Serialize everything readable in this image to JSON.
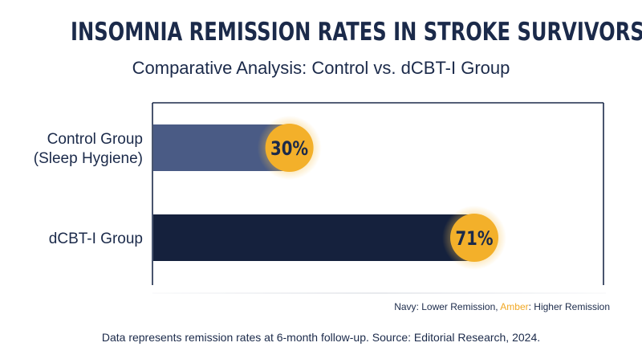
{
  "title": "INSOMNIA REMISSION RATES IN STROKE SURVIVORS",
  "subtitle": "Comparative Analysis: Control vs. dCBT-I Group",
  "legend": {
    "navy_label": "Navy",
    "navy_text": ": Lower Remission, ",
    "amber_label": "Amber",
    "amber_text": ": Higher Remission"
  },
  "footnote": "Data represents remission rates at 6-month follow-up. Source: Editorial Research, 2024.",
  "colors": {
    "control_bar": "#4a5b85",
    "dcbt_bar": "#15213d",
    "badge": "#f3b02a",
    "axis": "#1b2a4a"
  },
  "chart_data": {
    "type": "bar",
    "orientation": "horizontal",
    "categories": [
      [
        "Control Group",
        "(Sleep Hygiene)"
      ],
      [
        "dCBT-I Group"
      ]
    ],
    "values": [
      30,
      71
    ],
    "value_labels": [
      "30%",
      "71%"
    ],
    "xlim": [
      0,
      100
    ],
    "grid": false
  }
}
